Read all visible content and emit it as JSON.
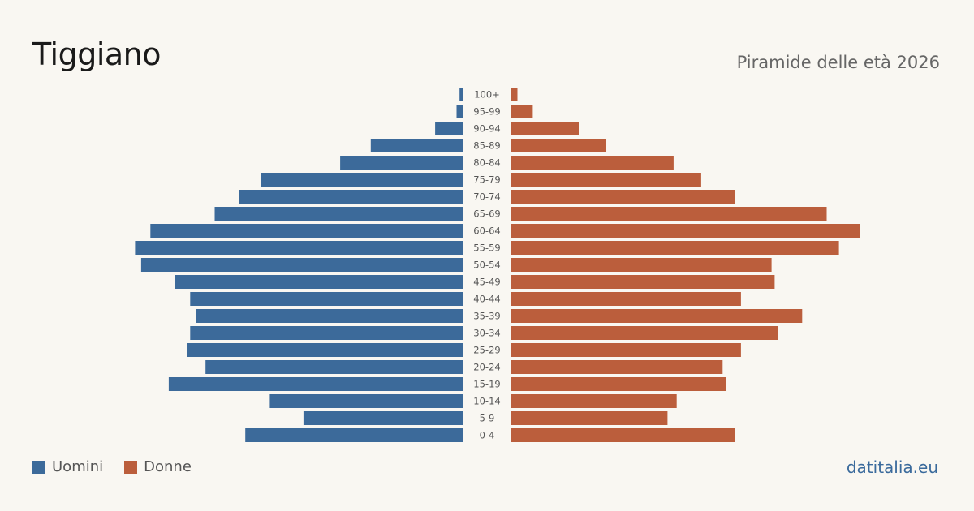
{
  "title": "Tiggiano",
  "subtitle": "Piramide delle età 2026",
  "source": "datitalia.eu",
  "colors": {
    "men": "#3c6a9a",
    "women": "#bb5e3c",
    "background": "#f9f7f2"
  },
  "legend": {
    "men_label": "Uomini",
    "women_label": "Donne"
  },
  "chart_data": {
    "type": "bar",
    "orientation": "horizontal-population-pyramid",
    "categories": [
      "100+",
      "95-99",
      "90-94",
      "85-89",
      "80-84",
      "75-79",
      "70-74",
      "65-69",
      "60-64",
      "55-59",
      "50-54",
      "45-49",
      "40-44",
      "35-39",
      "30-34",
      "25-29",
      "20-24",
      "15-19",
      "10-14",
      "5-9",
      "0-4"
    ],
    "series": [
      {
        "name": "Uomini",
        "values": [
          1,
          2,
          9,
          30,
          40,
          66,
          73,
          81,
          102,
          107,
          105,
          94,
          89,
          87,
          89,
          90,
          84,
          96,
          63,
          52,
          71
        ]
      },
      {
        "name": "Donne",
        "values": [
          2,
          7,
          22,
          31,
          53,
          62,
          73,
          103,
          114,
          107,
          85,
          86,
          75,
          95,
          87,
          75,
          69,
          70,
          54,
          51,
          73
        ]
      }
    ],
    "xlim": [
      0,
      114
    ]
  }
}
